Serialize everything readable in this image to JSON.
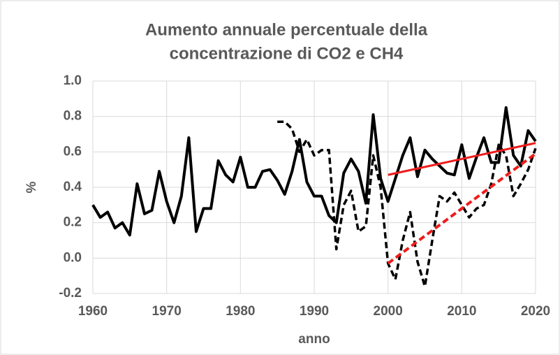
{
  "chart_data": {
    "type": "line",
    "title": [
      "Aumento annuale percentuale della",
      "concentrazione di CO2 e CH4"
    ],
    "x_label": "anno",
    "y_label": "%",
    "x": [
      1960,
      1961,
      1962,
      1963,
      1964,
      1965,
      1966,
      1967,
      1968,
      1969,
      1970,
      1971,
      1972,
      1973,
      1974,
      1975,
      1976,
      1977,
      1978,
      1979,
      1980,
      1981,
      1982,
      1983,
      1984,
      1985,
      1986,
      1987,
      1988,
      1989,
      1990,
      1991,
      1992,
      1993,
      1994,
      1995,
      1996,
      1997,
      1998,
      1999,
      2000,
      2001,
      2002,
      2003,
      2004,
      2005,
      2006,
      2007,
      2008,
      2009,
      2010,
      2011,
      2012,
      2013,
      2014,
      2015,
      2016,
      2017,
      2018,
      2019,
      2020
    ],
    "series": [
      {
        "color": "#000000",
        "dash": false,
        "width": 4,
        "values": [
          0.3,
          0.23,
          0.26,
          0.17,
          0.2,
          0.13,
          0.42,
          0.25,
          0.27,
          0.49,
          0.32,
          0.2,
          0.35,
          0.68,
          0.15,
          0.28,
          0.28,
          0.55,
          0.47,
          0.43,
          0.57,
          0.4,
          0.4,
          0.49,
          0.5,
          0.44,
          0.36,
          0.49,
          0.67,
          0.43,
          0.35,
          0.35,
          0.24,
          0.2,
          0.48,
          0.56,
          0.49,
          0.31,
          0.81,
          0.45,
          0.32,
          0.45,
          0.58,
          0.68,
          0.46,
          0.61,
          0.56,
          0.52,
          0.48,
          0.47,
          0.64,
          0.45,
          0.57,
          0.68,
          0.54,
          0.54,
          0.85,
          0.58,
          0.52,
          0.72,
          0.66
        ]
      },
      {
        "color": "#000000",
        "dash": true,
        "width": 3.5,
        "x": [
          1985,
          1986,
          1987,
          1988,
          1989,
          1990,
          1991,
          1992,
          1993,
          1994,
          1995,
          1996,
          1997,
          1998,
          1999,
          2000,
          2001,
          2002,
          2003,
          2004,
          2005,
          2006,
          2007,
          2008,
          2009,
          2010,
          2011,
          2012,
          2013,
          2014,
          2015,
          2016,
          2017,
          2018,
          2019,
          2020
        ],
        "values": [
          0.77,
          0.77,
          0.73,
          0.6,
          0.67,
          0.58,
          0.61,
          0.61,
          0.05,
          0.3,
          0.38,
          0.15,
          0.18,
          0.58,
          0.4,
          -0.03,
          -0.12,
          0.1,
          0.26,
          -0.02,
          -0.16,
          0.1,
          0.35,
          0.32,
          0.37,
          0.3,
          0.23,
          0.28,
          0.3,
          0.42,
          0.64,
          0.58,
          0.35,
          0.42,
          0.5,
          0.62
        ]
      },
      {
        "color": "#ee1c1c",
        "dash": false,
        "width": 3,
        "x": [
          2000,
          2020
        ],
        "values": [
          0.47,
          0.65
        ]
      },
      {
        "color": "#ee1c1c",
        "dash": true,
        "width": 4,
        "x": [
          2000,
          2020
        ],
        "values": [
          -0.03,
          0.59
        ]
      }
    ],
    "xlim": [
      1960,
      2020
    ],
    "ylim": [
      -0.2,
      1.0
    ],
    "xticks": [
      1960,
      1970,
      1980,
      1990,
      2000,
      2010,
      2020
    ],
    "yticks": [
      {
        "value": -0.2,
        "label": "-0.2"
      },
      {
        "value": 0,
        "label": "0.0"
      },
      {
        "value": 0.2,
        "label": "0.2"
      },
      {
        "value": 0.4,
        "label": "0.4"
      },
      {
        "value": 0.6,
        "label": "0.6"
      },
      {
        "value": 0.8,
        "label": "0.8"
      },
      {
        "value": 1,
        "label": "1.0"
      }
    ],
    "grid": true
  }
}
